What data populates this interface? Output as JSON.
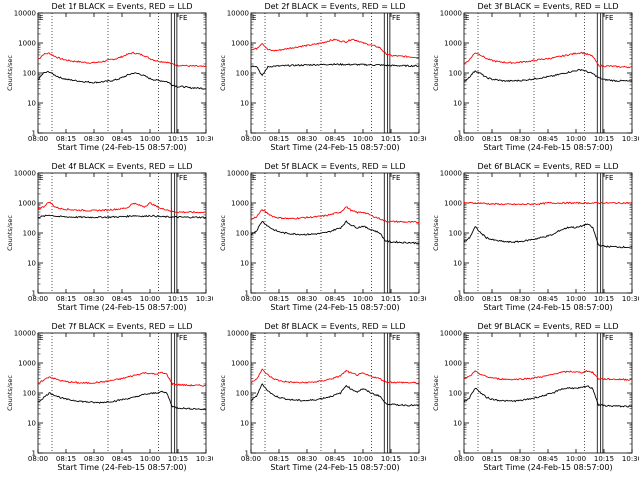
{
  "colors": {
    "events": "#000000",
    "lld": "#ff0000",
    "frame": "#000000"
  },
  "x_tick_labels": [
    "08:00",
    "08:15",
    "08:30",
    "08:45",
    "10:00",
    "10:15",
    "10:30"
  ],
  "y_tick_labels": [
    "1",
    "10",
    "100",
    "1000",
    "10000"
  ],
  "ylabel": "Counts/sec",
  "xlabel": "Start Time (24-Feb-15 08:57:00)",
  "markers": {
    "start": "E",
    "end": "FE"
  },
  "chart_data": [
    {
      "type": "line",
      "title": "Det 1f BLACK = Events, RED = LLD",
      "ylim": [
        1,
        10000
      ],
      "yscale": "log",
      "grid": false,
      "x": [
        0,
        5,
        10,
        15,
        20,
        25,
        30,
        35,
        40,
        45,
        50,
        55,
        60,
        65,
        70,
        75,
        80,
        85,
        90,
        95,
        100,
        105,
        110,
        115,
        120,
        125,
        130,
        135,
        140,
        145,
        150
      ],
      "series": [
        {
          "color": "red",
          "values": [
            280,
            420,
            460,
            360,
            300,
            270,
            250,
            240,
            230,
            220,
            220,
            230,
            250,
            280,
            300,
            350,
            420,
            470,
            430,
            380,
            300,
            260,
            240,
            230,
            200,
            180,
            180,
            170,
            170,
            165,
            160
          ]
        },
        {
          "color": "black",
          "values": [
            60,
            100,
            110,
            85,
            70,
            62,
            58,
            55,
            52,
            50,
            48,
            50,
            52,
            55,
            60,
            70,
            85,
            100,
            95,
            80,
            65,
            58,
            55,
            52,
            40,
            35,
            35,
            32,
            32,
            31,
            30
          ]
        }
      ]
    },
    {
      "type": "line",
      "title": "Det 2f BLACK = Events, RED = LLD",
      "ylim": [
        1,
        10000
      ],
      "yscale": "log",
      "grid": false,
      "x": [
        0,
        5,
        10,
        15,
        20,
        25,
        30,
        35,
        40,
        45,
        50,
        55,
        60,
        65,
        70,
        75,
        80,
        85,
        90,
        95,
        100,
        105,
        110,
        115,
        120,
        125,
        130,
        135,
        140,
        145,
        150
      ],
      "series": [
        {
          "color": "red",
          "values": [
            600,
            650,
            1000,
            600,
            550,
            580,
            620,
            680,
            720,
            780,
            820,
            880,
            950,
            1050,
            1200,
            1300,
            1150,
            1100,
            1350,
            1200,
            1000,
            900,
            800,
            700,
            450,
            380,
            370,
            360,
            350,
            340,
            330
          ]
        },
        {
          "color": "black",
          "values": [
            170,
            170,
            80,
            160,
            170,
            170,
            175,
            178,
            180,
            182,
            185,
            188,
            190,
            192,
            195,
            195,
            193,
            192,
            192,
            190,
            190,
            188,
            186,
            185,
            180,
            178,
            176,
            175,
            174,
            173,
            172
          ]
        }
      ]
    },
    {
      "type": "line",
      "title": "Det 3f BLACK = Events, RED = LLD",
      "ylim": [
        1,
        10000
      ],
      "yscale": "log",
      "grid": false,
      "x": [
        0,
        5,
        10,
        15,
        20,
        25,
        30,
        35,
        40,
        45,
        50,
        55,
        60,
        65,
        70,
        75,
        80,
        85,
        90,
        95,
        100,
        105,
        110,
        115,
        120,
        125,
        130,
        135,
        140,
        145,
        150
      ],
      "series": [
        {
          "color": "red",
          "values": [
            200,
            280,
            480,
            400,
            300,
            260,
            240,
            230,
            220,
            220,
            230,
            240,
            250,
            270,
            290,
            300,
            320,
            350,
            380,
            420,
            450,
            480,
            420,
            360,
            180,
            170,
            170,
            165,
            160,
            160,
            155
          ]
        },
        {
          "color": "black",
          "values": [
            50,
            75,
            120,
            95,
            70,
            62,
            58,
            55,
            54,
            55,
            56,
            58,
            62,
            66,
            70,
            75,
            80,
            90,
            100,
            110,
            120,
            130,
            110,
            95,
            70,
            60,
            58,
            55,
            55,
            54,
            52
          ]
        }
      ]
    },
    {
      "type": "line",
      "title": "Det 4f BLACK = Events, RED = LLD",
      "ylim": [
        1,
        10000
      ],
      "yscale": "log",
      "grid": false,
      "x": [
        0,
        5,
        10,
        15,
        20,
        25,
        30,
        35,
        40,
        45,
        50,
        55,
        60,
        65,
        70,
        75,
        80,
        85,
        90,
        95,
        100,
        105,
        110,
        115,
        120,
        125,
        130,
        135,
        140,
        145,
        150
      ],
      "series": [
        {
          "color": "red",
          "values": [
            650,
            750,
            1100,
            750,
            650,
            620,
            600,
            580,
            570,
            560,
            560,
            570,
            580,
            600,
            620,
            650,
            700,
            1000,
            850,
            750,
            1000,
            800,
            650,
            600,
            520,
            500,
            500,
            495,
            490,
            490,
            485
          ]
        },
        {
          "color": "black",
          "values": [
            340,
            360,
            400,
            370,
            350,
            345,
            340,
            338,
            336,
            335,
            335,
            336,
            338,
            340,
            345,
            350,
            360,
            380,
            370,
            360,
            380,
            365,
            350,
            345,
            340,
            338,
            336,
            335,
            335,
            334,
            333
          ]
        }
      ]
    },
    {
      "type": "line",
      "title": "Det 5f BLACK = Events, RED = LLD",
      "ylim": [
        1,
        10000
      ],
      "yscale": "log",
      "grid": false,
      "x": [
        0,
        5,
        10,
        15,
        20,
        25,
        30,
        35,
        40,
        45,
        50,
        55,
        60,
        65,
        70,
        75,
        80,
        85,
        90,
        95,
        100,
        105,
        110,
        115,
        120,
        125,
        130,
        135,
        140,
        145,
        150
      ],
      "series": [
        {
          "color": "red",
          "values": [
            280,
            350,
            600,
            450,
            350,
            320,
            310,
            300,
            310,
            320,
            330,
            340,
            350,
            370,
            400,
            450,
            500,
            750,
            550,
            480,
            500,
            420,
            350,
            300,
            250,
            240,
            240,
            235,
            230,
            230,
            225
          ]
        },
        {
          "color": "black",
          "values": [
            90,
            120,
            250,
            170,
            130,
            110,
            100,
            95,
            92,
            90,
            90,
            92,
            95,
            100,
            110,
            130,
            150,
            240,
            180,
            150,
            170,
            140,
            120,
            100,
            55,
            50,
            50,
            48,
            48,
            47,
            46
          ]
        }
      ]
    },
    {
      "type": "line",
      "title": "Det 6f BLACK = Events, RED = LLD",
      "ylim": [
        1,
        10000
      ],
      "yscale": "log",
      "grid": false,
      "x": [
        0,
        5,
        10,
        15,
        20,
        25,
        30,
        35,
        40,
        45,
        50,
        55,
        60,
        65,
        70,
        75,
        80,
        85,
        90,
        95,
        100,
        105,
        110,
        115,
        120,
        125,
        130,
        135,
        140,
        145,
        150
      ],
      "series": [
        {
          "color": "red",
          "values": [
            1000,
            1000,
            1000,
            1000,
            950,
            930,
            920,
            910,
            900,
            900,
            900,
            910,
            920,
            930,
            950,
            1000,
            1000,
            1000,
            1000,
            1000,
            1000,
            1000,
            1000,
            1000,
            1000,
            1000,
            1000,
            1000,
            1000,
            1000,
            1000
          ]
        },
        {
          "color": "black",
          "values": [
            50,
            70,
            160,
            100,
            70,
            60,
            55,
            52,
            50,
            50,
            52,
            55,
            60,
            65,
            72,
            80,
            90,
            120,
            140,
            160,
            150,
            170,
            200,
            150,
            40,
            36,
            35,
            35,
            34,
            34,
            33
          ]
        }
      ]
    },
    {
      "type": "line",
      "title": "Det 7f BLACK = Events, RED = LLD",
      "ylim": [
        1,
        10000
      ],
      "yscale": "log",
      "grid": false,
      "x": [
        0,
        5,
        10,
        15,
        20,
        25,
        30,
        35,
        40,
        45,
        50,
        55,
        60,
        65,
        70,
        75,
        80,
        85,
        90,
        95,
        100,
        105,
        110,
        115,
        120,
        125,
        130,
        135,
        140,
        145,
        150
      ],
      "series": [
        {
          "color": "red",
          "values": [
            200,
            270,
            350,
            300,
            260,
            240,
            230,
            220,
            215,
            215,
            220,
            230,
            240,
            260,
            280,
            300,
            340,
            380,
            420,
            470,
            450,
            420,
            480,
            420,
            200,
            190,
            185,
            180,
            180,
            178,
            175
          ]
        },
        {
          "color": "black",
          "values": [
            50,
            70,
            100,
            85,
            70,
            62,
            58,
            55,
            52,
            50,
            48,
            48,
            50,
            52,
            55,
            60,
            65,
            70,
            80,
            90,
            95,
            100,
            110,
            100,
            35,
            32,
            31,
            30,
            30,
            29,
            28
          ]
        }
      ]
    },
    {
      "type": "line",
      "title": "Det 8f BLACK = Events, RED = LLD",
      "ylim": [
        1,
        10000
      ],
      "yscale": "log",
      "grid": false,
      "x": [
        0,
        5,
        10,
        15,
        20,
        25,
        30,
        35,
        40,
        45,
        50,
        55,
        60,
        65,
        70,
        75,
        80,
        85,
        90,
        95,
        100,
        105,
        110,
        115,
        120,
        125,
        130,
        135,
        140,
        145,
        150
      ],
      "series": [
        {
          "color": "red",
          "values": [
            220,
            300,
            600,
            400,
            300,
            260,
            240,
            230,
            225,
            220,
            225,
            230,
            240,
            260,
            290,
            320,
            380,
            550,
            450,
            400,
            450,
            380,
            340,
            300,
            240,
            230,
            225,
            225,
            220,
            220,
            215
          ]
        },
        {
          "color": "black",
          "values": [
            55,
            80,
            200,
            120,
            85,
            72,
            65,
            60,
            58,
            56,
            56,
            58,
            62,
            68,
            75,
            85,
            100,
            180,
            130,
            110,
            140,
            110,
            90,
            80,
            45,
            42,
            40,
            40,
            39,
            39,
            38
          ]
        }
      ]
    },
    {
      "type": "line",
      "title": "Det 9f BLACK = Events, RED = LLD",
      "ylim": [
        1,
        10000
      ],
      "yscale": "log",
      "grid": false,
      "x": [
        0,
        5,
        10,
        15,
        20,
        25,
        30,
        35,
        40,
        45,
        50,
        55,
        60,
        65,
        70,
        75,
        80,
        85,
        90,
        95,
        100,
        105,
        110,
        115,
        120,
        125,
        130,
        135,
        140,
        145,
        150
      ],
      "series": [
        {
          "color": "red",
          "values": [
            300,
            360,
            520,
            420,
            350,
            320,
            300,
            290,
            285,
            285,
            290,
            300,
            310,
            330,
            350,
            380,
            420,
            480,
            500,
            520,
            500,
            480,
            550,
            480,
            300,
            290,
            290,
            285,
            285,
            280,
            280
          ]
        },
        {
          "color": "black",
          "values": [
            50,
            70,
            150,
            100,
            72,
            62,
            58,
            55,
            54,
            54,
            56,
            60,
            65,
            72,
            80,
            90,
            100,
            130,
            140,
            150,
            140,
            150,
            170,
            140,
            40,
            38,
            37,
            37,
            36,
            36,
            35
          ]
        }
      ]
    }
  ]
}
